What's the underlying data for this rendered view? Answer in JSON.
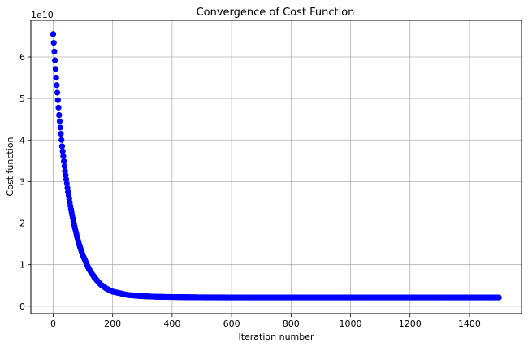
{
  "chart_data": {
    "type": "scatter",
    "title": "Convergence of Cost Function",
    "xlabel": "Iteration number",
    "ylabel": "Cost function",
    "offset_text": "1e10",
    "y_scale": 10000000000,
    "xlim": [
      -75,
      1575
    ],
    "ylim": [
      -0.18,
      6.88
    ],
    "xticks": [
      0,
      200,
      400,
      600,
      800,
      1000,
      1200,
      1400
    ],
    "xtick_labels": [
      "0",
      "200",
      "400",
      "600",
      "800",
      "1000",
      "1200",
      "1400"
    ],
    "yticks": [
      0,
      1,
      2,
      3,
      4,
      5,
      6
    ],
    "ytick_labels": [
      "0",
      "1",
      "2",
      "3",
      "4",
      "5",
      "6"
    ],
    "grid": true,
    "marker_color": "#0000ff",
    "series": [
      {
        "x": [
          0,
          10,
          20,
          30,
          40,
          50,
          60,
          70,
          80,
          90,
          100,
          120,
          140,
          160,
          180,
          200,
          250,
          300,
          350,
          400,
          450,
          500,
          600,
          700,
          800,
          900,
          1000,
          1100,
          1200,
          1300,
          1400,
          1499
        ],
        "y": [
          6.55,
          5.5,
          4.6,
          3.85,
          3.25,
          2.75,
          2.33,
          1.98,
          1.68,
          1.43,
          1.22,
          0.9,
          0.68,
          0.52,
          0.42,
          0.35,
          0.27,
          0.24,
          0.225,
          0.22,
          0.215,
          0.212,
          0.21,
          0.21,
          0.21,
          0.21,
          0.21,
          0.21,
          0.21,
          0.21,
          0.21,
          0.21
        ]
      }
    ]
  }
}
